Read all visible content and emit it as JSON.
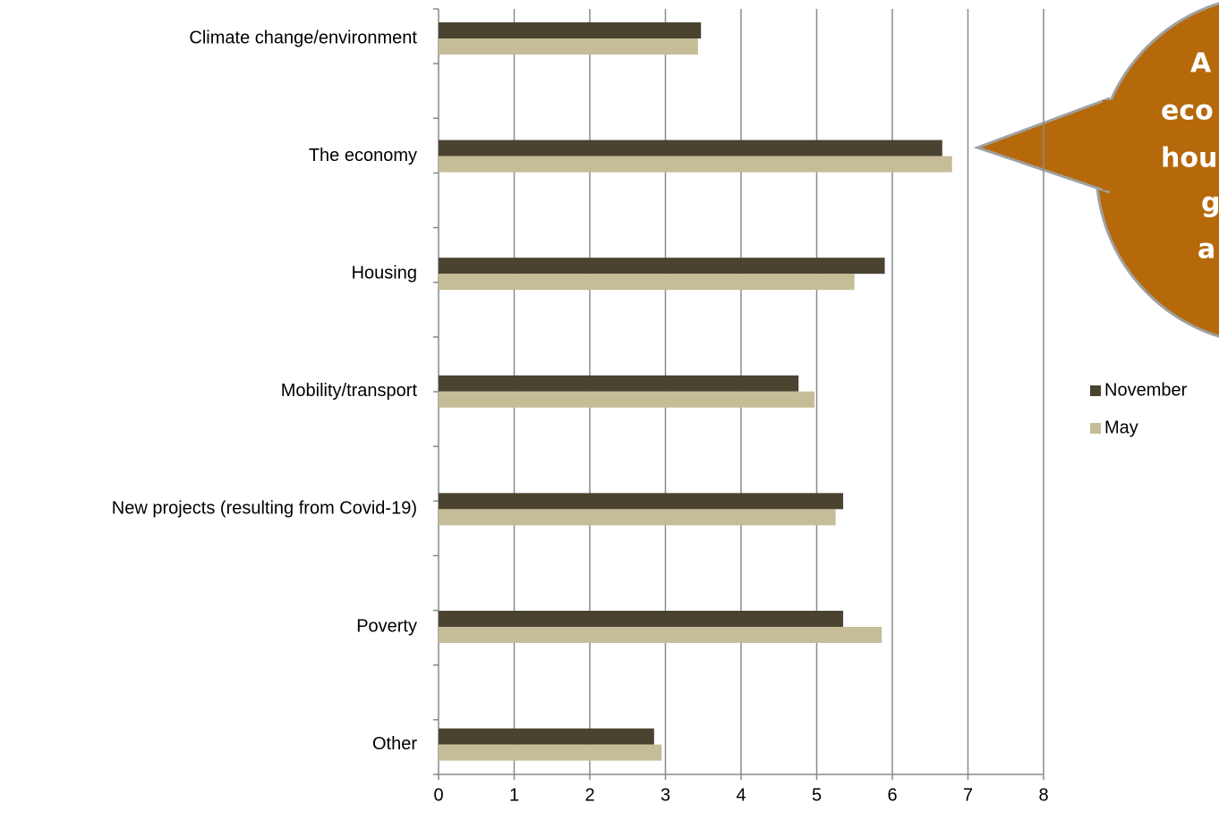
{
  "chart_data": {
    "type": "hbar",
    "categories": [
      "Climate change/environment",
      "The economy",
      "Housing",
      "Mobility/transport",
      "New projects (resulting from Covid-19)",
      "Poverty",
      "Other"
    ],
    "series": [
      {
        "name": "November",
        "color": "#4a4330",
        "values": [
          3.47,
          6.66,
          5.9,
          4.76,
          5.35,
          5.35,
          2.85
        ]
      },
      {
        "name": "May",
        "color": "#c5bd98",
        "values": [
          3.43,
          6.79,
          5.5,
          4.97,
          5.25,
          5.86,
          2.95
        ]
      }
    ],
    "xlim": [
      0,
      8
    ],
    "xticks": [
      0,
      1,
      2,
      3,
      4,
      5,
      6,
      7,
      8
    ],
    "grid": true,
    "legend": "right",
    "annotation": [
      "A",
      "eco",
      "hou",
      "g",
      "a"
    ]
  }
}
